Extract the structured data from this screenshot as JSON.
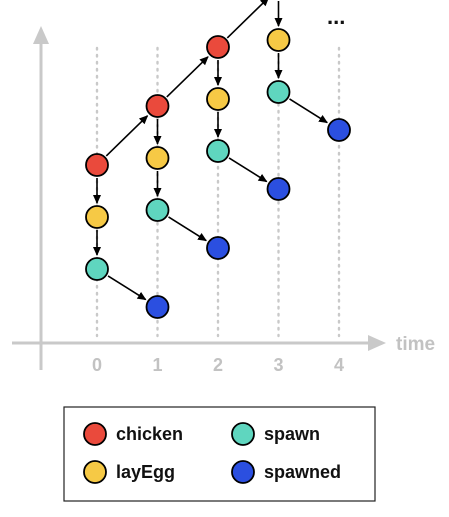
{
  "diagram": {
    "x_axis_label": "time",
    "ticks": [
      "0",
      "1",
      "2",
      "3",
      "4"
    ],
    "continuation": "...",
    "colors": {
      "chicken": "#ea4a3c",
      "layEgg": "#f6c945",
      "spawn": "#5fd6bf",
      "spawned": "#2b4fe0",
      "axis": "#c9c9c9",
      "gridline": "#c9c9c9",
      "arrow": "#000000"
    },
    "legend": [
      {
        "key": "chicken",
        "label": "chicken"
      },
      {
        "key": "spawn",
        "label": "spawn"
      },
      {
        "key": "layEgg",
        "label": "layEgg"
      },
      {
        "key": "spawned",
        "label": "spawned"
      }
    ],
    "nodes": [
      {
        "type": "chicken",
        "time": 0,
        "level": 0
      },
      {
        "type": "layEgg",
        "time": 0,
        "level": 1
      },
      {
        "type": "spawn",
        "time": 0,
        "level": 2
      },
      {
        "type": "spawned",
        "time": 1,
        "level": 3
      },
      {
        "type": "chicken",
        "time": 1,
        "level": 0
      },
      {
        "type": "layEgg",
        "time": 1,
        "level": 1
      },
      {
        "type": "spawn",
        "time": 1,
        "level": 2
      },
      {
        "type": "spawned",
        "time": 2,
        "level": 3
      },
      {
        "type": "chicken",
        "time": 2,
        "level": 0
      },
      {
        "type": "layEgg",
        "time": 2,
        "level": 1
      },
      {
        "type": "spawn",
        "time": 2,
        "level": 2
      },
      {
        "type": "spawned",
        "time": 3,
        "level": 3
      },
      {
        "type": "chicken",
        "time": 3,
        "level": 0
      },
      {
        "type": "layEgg",
        "time": 3,
        "level": 1
      },
      {
        "type": "spawn",
        "time": 3,
        "level": 2
      },
      {
        "type": "spawned",
        "time": 4,
        "level": 3
      }
    ],
    "edges": [
      [
        0,
        1
      ],
      [
        1,
        2
      ],
      [
        2,
        3
      ],
      [
        0,
        4
      ],
      [
        4,
        5
      ],
      [
        5,
        6
      ],
      [
        6,
        7
      ],
      [
        4,
        8
      ],
      [
        8,
        9
      ],
      [
        9,
        10
      ],
      [
        10,
        11
      ],
      [
        8,
        12
      ],
      [
        12,
        13
      ],
      [
        13,
        14
      ],
      [
        14,
        15
      ]
    ]
  }
}
